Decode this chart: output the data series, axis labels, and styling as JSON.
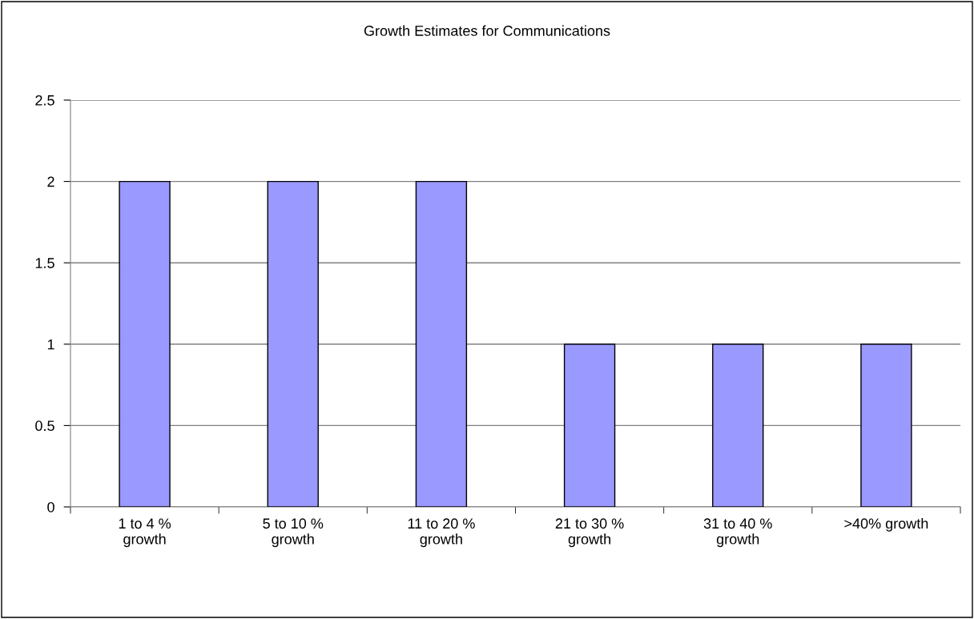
{
  "chart_data": {
    "type": "bar",
    "title": "Growth Estimates for Communications",
    "categories": [
      "1 to 4 %\ngrowth",
      "5 to 10 %\ngrowth",
      "11 to 20 %\ngrowth",
      "21 to 30 %\ngrowth",
      "31 to 40 %\ngrowth",
      ">40% growth"
    ],
    "values": [
      2,
      2,
      2,
      1,
      1,
      1
    ],
    "color": "#9999ff",
    "ylim": [
      0,
      2.5
    ],
    "yticks": [
      0,
      0.5,
      1,
      1.5,
      2,
      2.5
    ],
    "grid": "y",
    "legend": false
  }
}
